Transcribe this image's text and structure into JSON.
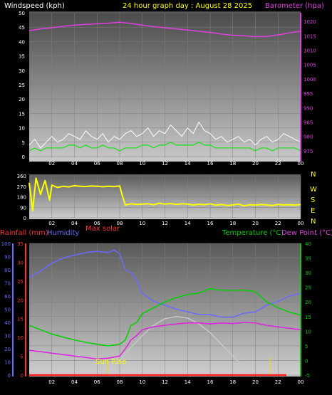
{
  "chart_data": [
    {
      "type": "line",
      "header": "24 hour graph day : August 28 2025",
      "ylabel_left": "Windspeed (kph)",
      "ylabel_right": "Barometer (hpa)",
      "x_ticks": [
        "02",
        "04",
        "06",
        "08",
        "10",
        "12",
        "14",
        "16",
        "18",
        "20",
        "22",
        "00"
      ],
      "ylim_left": [
        0,
        50
      ],
      "y_ticks_left": [
        0,
        5,
        10,
        15,
        20,
        25,
        30,
        35,
        40,
        45,
        50
      ],
      "ylim_right": [
        973,
        1023
      ],
      "y_ticks_right": [
        975,
        980,
        985,
        990,
        995,
        1000,
        1005,
        1010,
        1015,
        1020
      ],
      "grid": true,
      "series": [
        {
          "name": "Barometer",
          "color": "#e040e0",
          "axis": "right",
          "x": [
            0,
            1,
            2,
            3,
            4,
            5,
            6,
            7,
            8,
            9,
            10,
            11,
            12,
            13,
            14,
            15,
            16,
            17,
            18,
            19,
            20,
            21,
            22,
            23,
            24
          ],
          "values": [
            1016.8,
            1017.4,
            1017.8,
            1018.3,
            1018.7,
            1019.0,
            1019.2,
            1019.4,
            1019.7,
            1019.3,
            1018.7,
            1018.2,
            1017.8,
            1017.4,
            1017.0,
            1016.6,
            1016.2,
            1015.6,
            1015.2,
            1015.0,
            1014.7,
            1014.8,
            1015.3,
            1016.0,
            1016.6
          ]
        },
        {
          "name": "Wind Gust",
          "color": "#ffffff",
          "axis": "left",
          "x": [
            0,
            0.5,
            1,
            1.5,
            2,
            2.5,
            3,
            3.5,
            4,
            4.5,
            5,
            5.5,
            6,
            6.5,
            7,
            7.5,
            8,
            8.5,
            9,
            9.5,
            10,
            10.5,
            11,
            11.5,
            12,
            12.5,
            13,
            13.5,
            14,
            14.5,
            15,
            15.5,
            16,
            16.5,
            17,
            17.5,
            18,
            18.5,
            19,
            19.5,
            20,
            20.5,
            21,
            21.5,
            22,
            22.5,
            23,
            23.5,
            24
          ],
          "values": [
            4,
            6,
            3,
            5,
            7,
            5,
            6,
            8,
            7,
            6,
            9,
            7,
            6,
            8,
            5,
            7,
            6,
            8,
            9,
            7,
            8,
            10,
            7,
            9,
            8,
            11,
            9,
            7,
            10,
            8,
            12,
            9,
            8,
            6,
            7,
            5,
            6,
            7,
            5,
            6,
            4,
            6,
            7,
            5,
            6,
            8,
            7,
            6,
            5
          ]
        },
        {
          "name": "Wind Speed",
          "color": "#20e020",
          "axis": "left",
          "x": [
            0,
            0.5,
            1,
            1.5,
            2,
            2.5,
            3,
            3.5,
            4,
            4.5,
            5,
            5.5,
            6,
            6.5,
            7,
            7.5,
            8,
            8.5,
            9,
            9.5,
            10,
            10.5,
            11,
            11.5,
            12,
            12.5,
            13,
            13.5,
            14,
            14.5,
            15,
            15.5,
            16,
            16.5,
            17,
            17.5,
            18,
            18.5,
            19,
            19.5,
            20,
            20.5,
            21,
            21.5,
            22,
            22.5,
            23,
            23.5,
            24
          ],
          "values": [
            2,
            3,
            2,
            3,
            3,
            3,
            3,
            4,
            4,
            3,
            4,
            3,
            3,
            4,
            3,
            3,
            2,
            3,
            3,
            3,
            4,
            4,
            3,
            4,
            4,
            5,
            4,
            4,
            4,
            4,
            5,
            4,
            4,
            3,
            3,
            3,
            3,
            3,
            3,
            3,
            2,
            3,
            3,
            2,
            3,
            3,
            3,
            3,
            2
          ]
        }
      ]
    },
    {
      "type": "scatter",
      "ylabel_right": [
        "N",
        "W",
        "S",
        "E",
        "N"
      ],
      "ylim": [
        0,
        360
      ],
      "y_ticks": [
        0,
        90,
        180,
        270,
        360
      ],
      "x_ticks": [
        "02",
        "04",
        "06",
        "08",
        "10",
        "12",
        "14",
        "16",
        "18",
        "20",
        "22",
        "00"
      ],
      "grid": true,
      "series": [
        {
          "name": "Wind Direction",
          "color": "#ffff00",
          "x": [
            0,
            0.3,
            0.6,
            1,
            1.4,
            1.8,
            2,
            2.5,
            3,
            3.5,
            4,
            4.5,
            5,
            5.5,
            6,
            6.5,
            7,
            7.5,
            8,
            8.2,
            8.5,
            9,
            9.5,
            10,
            10.5,
            11,
            11.5,
            12,
            12.5,
            13,
            13.5,
            14,
            14.5,
            15,
            15.5,
            16,
            16.5,
            17,
            17.5,
            18,
            18.5,
            19,
            19.5,
            20,
            20.5,
            21,
            21.5,
            22,
            22.5,
            23,
            23.5,
            24
          ],
          "values": [
            300,
            60,
            340,
            200,
            320,
            150,
            280,
            260,
            270,
            265,
            275,
            270,
            268,
            272,
            270,
            266,
            270,
            268,
            272,
            200,
            110,
            120,
            115,
            118,
            120,
            112,
            125,
            118,
            122,
            115,
            120,
            118,
            110,
            116,
            112,
            120,
            108,
            115,
            105,
            110,
            118,
            102,
            112,
            108,
            115,
            110,
            105,
            115,
            110,
            112,
            108,
            114
          ]
        }
      ]
    },
    {
      "type": "line",
      "ylabel_left": "Rainfall (mm)",
      "ylabel_left2": "Humidity",
      "annotation": "Max solar",
      "ylabel_right": "Temperature (°C)",
      "ylabel_right2": "Dew Point (°C)",
      "sunrise_label": "Sun Rise",
      "x_ticks": [
        "02",
        "04",
        "06",
        "08",
        "10",
        "12",
        "14",
        "16",
        "18",
        "20",
        "22",
        "00"
      ],
      "ylim_humidity": [
        0,
        100
      ],
      "y_ticks_humidity": [
        0,
        10,
        20,
        30,
        40,
        50,
        60,
        70,
        80,
        90,
        100
      ],
      "ylim_rain": [
        0,
        35
      ],
      "y_ticks_rain": [
        0,
        5,
        10,
        15,
        20,
        25,
        30,
        35
      ],
      "ylim_temp": [
        -5,
        40
      ],
      "y_ticks_temp": [
        -5,
        0,
        5,
        10,
        15,
        20,
        25,
        30,
        35,
        40
      ],
      "grid": true,
      "series": [
        {
          "name": "Humidity",
          "color": "#6a6aff",
          "axis": "humidity",
          "x": [
            0,
            1,
            2,
            3,
            4,
            5,
            6,
            7,
            7.5,
            8,
            8.5,
            9,
            9.5,
            10,
            11,
            12,
            13,
            14,
            15,
            16,
            17,
            18,
            19,
            20,
            21,
            22,
            23,
            24
          ],
          "values": [
            74,
            79,
            85,
            89,
            91,
            93,
            94,
            93,
            95,
            92,
            80,
            78,
            72,
            62,
            56,
            53,
            50,
            48,
            46,
            46,
            44,
            44,
            47,
            48,
            53,
            56,
            60,
            62
          ]
        },
        {
          "name": "Temperature",
          "color": "#00d000",
          "axis": "temp",
          "x": [
            0,
            1,
            2,
            3,
            4,
            5,
            6,
            7,
            8,
            8.5,
            9,
            9.5,
            10,
            11,
            12,
            13,
            14,
            15,
            16,
            17,
            18,
            19,
            20,
            21,
            22,
            23,
            24
          ],
          "values": [
            12,
            10.5,
            9,
            8,
            7,
            6.2,
            5.5,
            5,
            5.5,
            7,
            12,
            13,
            16,
            18,
            20,
            21.5,
            22.5,
            23,
            24.5,
            24,
            24,
            24,
            23.5,
            20,
            18,
            16.5,
            15.5
          ]
        },
        {
          "name": "Dew Point",
          "color": "#e020e0",
          "axis": "temp",
          "x": [
            0,
            1,
            2,
            3,
            4,
            5,
            6,
            7,
            8,
            8.5,
            9,
            9.5,
            10,
            11,
            12,
            13,
            14,
            15,
            16,
            17,
            18,
            19,
            20,
            21,
            22,
            23,
            24
          ],
          "values": [
            3.5,
            3,
            2.5,
            2,
            1.5,
            1,
            0.5,
            0.8,
            1.5,
            4,
            7,
            8.5,
            10.5,
            11.5,
            12,
            12.5,
            12.8,
            12.8,
            12.5,
            12.8,
            12.6,
            13,
            12.8,
            12,
            11.5,
            11,
            10.5
          ]
        },
        {
          "name": "Max solar",
          "color": "#c8c8c8",
          "axis": "temp",
          "x": [
            6.5,
            7,
            8,
            9,
            10,
            11,
            12,
            13,
            14,
            15,
            16,
            17,
            18,
            19,
            20,
            20.5
          ],
          "values": [
            -5,
            -4,
            0,
            4.5,
            8.5,
            12,
            14.3,
            15,
            14.5,
            12.5,
            9.5,
            5.5,
            1.5,
            -2.5,
            -5,
            -5
          ]
        }
      ],
      "rain_marks": [
        {
          "x": 6.9,
          "value": 2.5
        },
        {
          "x": 21.3,
          "value": 3.2
        }
      ]
    }
  ]
}
